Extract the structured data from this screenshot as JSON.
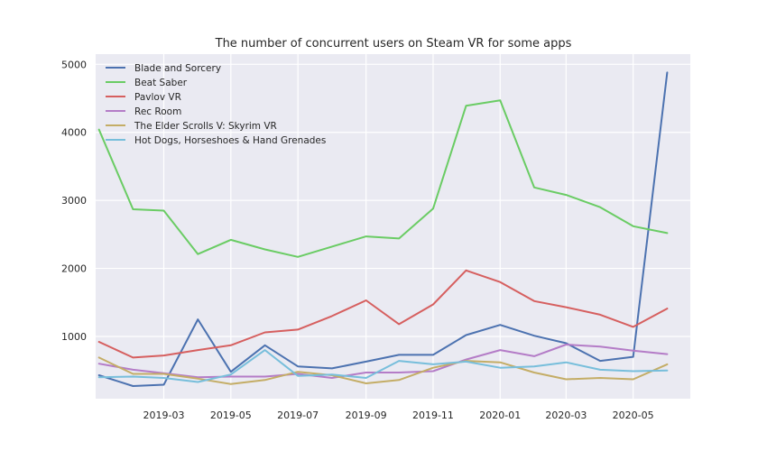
{
  "chart_data": {
    "type": "line",
    "title": "The number of concurrent users on Steam VR for some apps",
    "xlabel": "",
    "ylabel": "",
    "x": [
      "2019-01-01",
      "2019-02-01",
      "2019-03-01",
      "2019-04-01",
      "2019-05-01",
      "2019-06-01",
      "2019-07-01",
      "2019-08-01",
      "2019-09-01",
      "2019-10-01",
      "2019-11-01",
      "2019-12-01",
      "2020-01-01",
      "2020-02-01",
      "2020-03-01",
      "2020-04-01",
      "2020-05-01",
      "2020-06-01"
    ],
    "x_ticks": [
      "2019-03",
      "2019-05",
      "2019-07",
      "2019-09",
      "2019-11",
      "2020-01",
      "2020-03",
      "2020-05"
    ],
    "y_ticks": [
      1000,
      2000,
      3000,
      4000,
      5000
    ],
    "ylim": [
      85,
      5150
    ],
    "grid": true,
    "legend_position": "top-left",
    "series": [
      {
        "name": "Blade and Sorcery",
        "color": "#4c72b0",
        "values": [
          430,
          270,
          290,
          1250,
          480,
          870,
          560,
          530,
          630,
          730,
          730,
          1020,
          1170,
          1010,
          900,
          640,
          700,
          4880
        ]
      },
      {
        "name": "Beat Saber",
        "color": "#6acc64",
        "values": [
          4040,
          2870,
          2850,
          2210,
          2420,
          2280,
          2170,
          2320,
          2470,
          2440,
          2880,
          4390,
          4470,
          3190,
          3080,
          2900,
          2620,
          2520
        ]
      },
      {
        "name": "Pavlov VR",
        "color": "#d65f5f",
        "values": [
          920,
          690,
          720,
          800,
          870,
          1060,
          1100,
          1300,
          1530,
          1180,
          1470,
          1970,
          1800,
          1520,
          1430,
          1320,
          1140,
          1410
        ]
      },
      {
        "name": "Rec Room",
        "color": "#b47cc7",
        "values": [
          600,
          510,
          460,
          400,
          410,
          410,
          450,
          390,
          470,
          470,
          490,
          660,
          800,
          710,
          880,
          850,
          790,
          740
        ]
      },
      {
        "name": "The Elder Scrolls V: Skyrim VR",
        "color": "#c4ad66",
        "values": [
          690,
          450,
          450,
          380,
          300,
          360,
          480,
          430,
          310,
          360,
          540,
          640,
          620,
          470,
          370,
          390,
          370,
          590
        ]
      },
      {
        "name": "Hot Dogs, Horseshoes & Hand Grenades",
        "color": "#77bedb",
        "values": [
          400,
          410,
          390,
          330,
          440,
          800,
          420,
          440,
          390,
          640,
          590,
          630,
          540,
          560,
          620,
          510,
          490,
          500
        ]
      }
    ]
  }
}
